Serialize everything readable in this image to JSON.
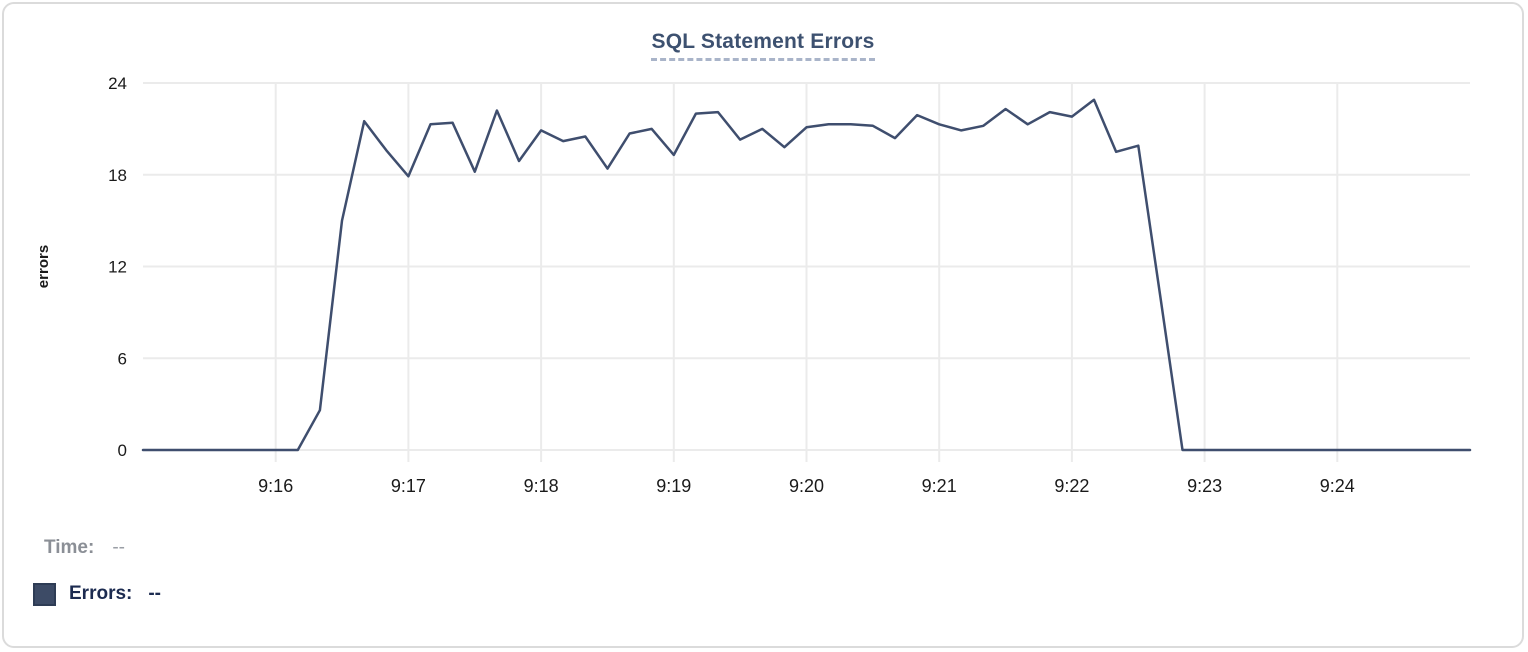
{
  "chart": {
    "title": "SQL Statement Errors",
    "colors": {
      "line": "#3f4e6e",
      "grid": "#ebebeb",
      "title": "#3d5170",
      "title_underline": "#a9b4c9",
      "tick_text": "#1a1a1a",
      "axis_label_text": "#000000",
      "card_border": "#dbdbdb",
      "time_label": "#8b8f96",
      "errors_label": "#1c2b50",
      "legend_swatch": "#3d4b66"
    }
  },
  "tooltip": {
    "time_label": "Time:",
    "time_value": "--",
    "errors_label": "Errors:",
    "errors_value": "--"
  },
  "chart_data": {
    "type": "line",
    "title": "SQL Statement Errors",
    "xlabel": "",
    "ylabel": "errors",
    "ylim": [
      0,
      24
    ],
    "y_ticks": [
      0,
      6,
      12,
      18,
      24
    ],
    "x_tick_labels": [
      "9:16",
      "9:17",
      "9:18",
      "9:19",
      "9:20",
      "9:21",
      "9:22",
      "9:23",
      "9:24"
    ],
    "x_range": [
      "9:15:00",
      "9:25:00"
    ],
    "sample_interval_seconds": 10,
    "grid": true,
    "legend_position": "bottom-left",
    "series": [
      {
        "name": "Errors",
        "color": "#3f4e6e",
        "values": [
          0,
          0,
          0,
          0,
          0,
          0,
          0,
          0,
          2.6,
          15,
          21.5,
          19.6,
          17.9,
          21.3,
          21.4,
          18.2,
          22.2,
          18.9,
          20.9,
          20.2,
          20.5,
          18.4,
          20.7,
          21,
          19.3,
          22,
          22.1,
          20.3,
          21,
          19.8,
          21.1,
          21.3,
          21.3,
          21.2,
          20.4,
          21.9,
          21.3,
          20.9,
          21.2,
          22.3,
          21.3,
          22.1,
          21.8,
          22.9,
          19.5,
          19.9,
          10,
          0,
          0,
          0,
          0,
          0,
          0,
          0,
          0,
          0,
          0,
          0,
          0,
          0,
          0
        ]
      }
    ]
  }
}
